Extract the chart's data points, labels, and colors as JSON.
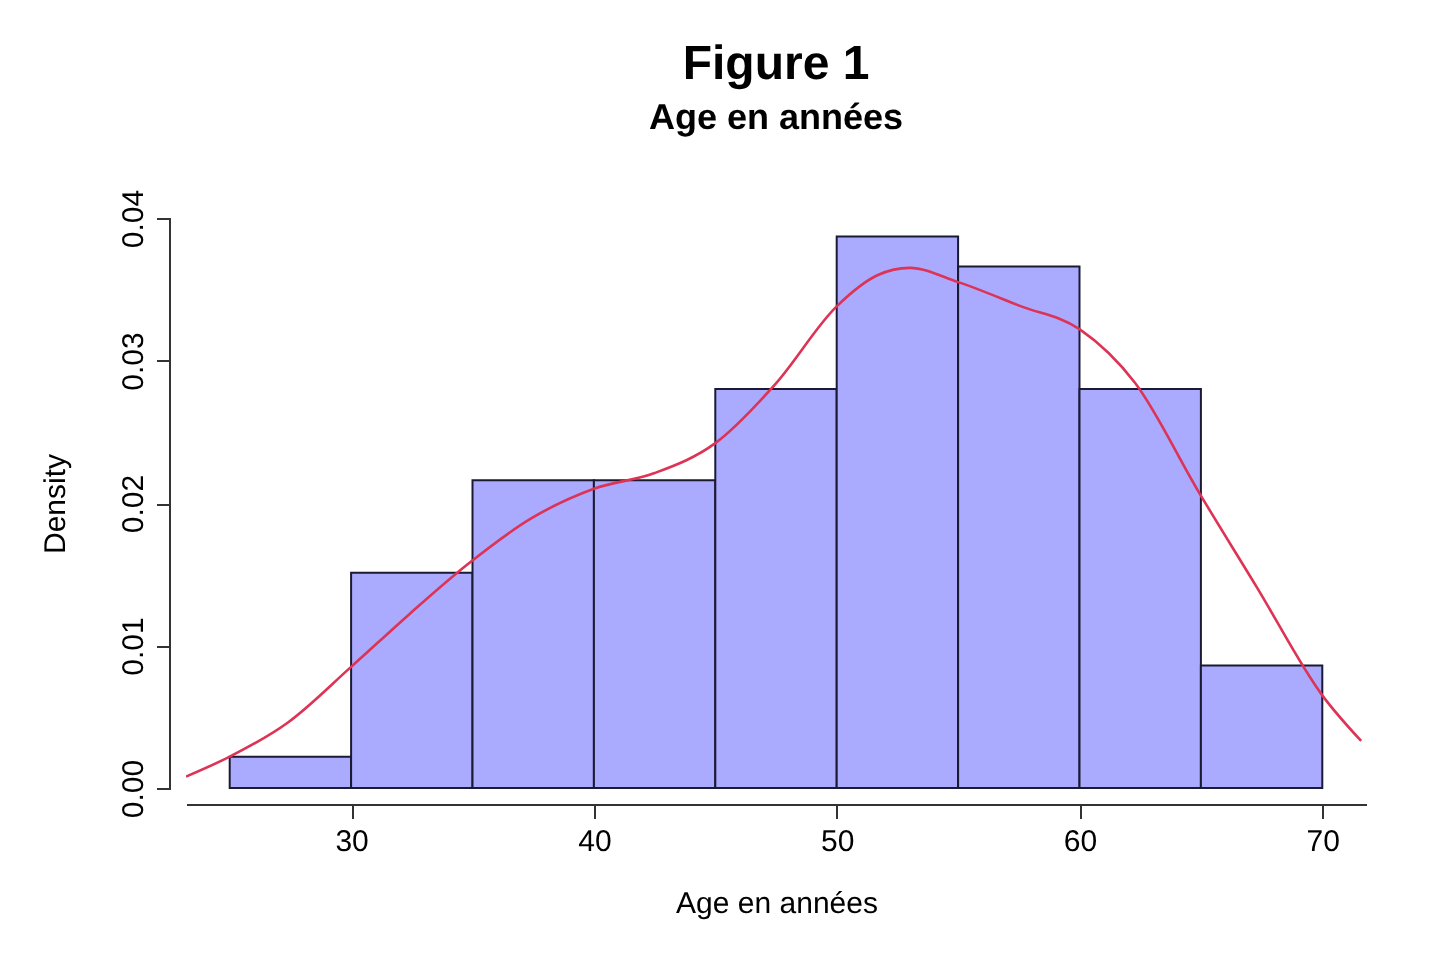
{
  "chart_data": {
    "type": "histogram",
    "title": "Figure 1",
    "subtitle": "Age en années",
    "xlabel": "Age en années",
    "ylabel": "Density",
    "bins": [
      25,
      30,
      35,
      40,
      45,
      50,
      55,
      60,
      65,
      70
    ],
    "values": [
      0.0022,
      0.0151,
      0.0216,
      0.0216,
      0.028,
      0.0387,
      0.0366,
      0.028,
      0.0086
    ],
    "color": "#aaaaff",
    "series": [
      {
        "type": "line",
        "color": "#dd3355",
        "x": [
          23.2,
          25,
          27.4,
          30,
          32.4,
          34.8,
          37.4,
          40,
          42.5,
          45,
          47.5,
          50,
          51.7,
          53,
          55,
          57.6,
          60,
          62.3,
          64.9,
          67.3,
          70,
          71.6
        ],
        "values": [
          0.0008,
          0.0022,
          0.0046,
          0.0085,
          0.0122,
          0.0157,
          0.0189,
          0.021,
          0.0221,
          0.0242,
          0.0284,
          0.0338,
          0.036,
          0.0365,
          0.0355,
          0.0338,
          0.0322,
          0.0284,
          0.0208,
          0.0141,
          0.0065,
          0.0033
        ]
      }
    ],
    "xlim": [
      23.2,
      71.8
    ],
    "xticks": [
      30,
      40,
      50,
      60,
      70
    ],
    "ylim": [
      0,
      0.04
    ],
    "yticks": [
      {
        "value": 0,
        "label": "0.00"
      },
      {
        "value": 0.01,
        "label": "0.01"
      },
      {
        "value": 0.02,
        "label": "0.02"
      },
      {
        "value": 0.03,
        "label": "0.03"
      },
      {
        "value": 0.04,
        "label": "0.04"
      }
    ],
    "grid": false
  }
}
